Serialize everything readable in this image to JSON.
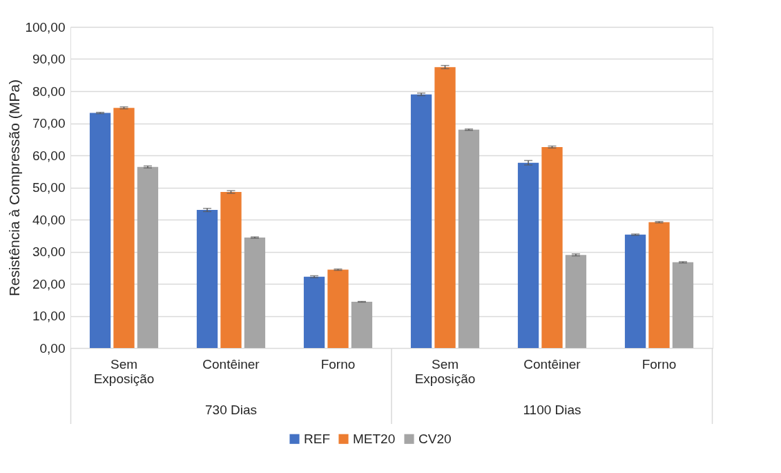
{
  "chart_data": {
    "type": "bar",
    "ylabel": "Resistência à Compressão (MPa)",
    "categories": [
      "Sem Exposição",
      "Contêiner",
      "Forno",
      "Sem Exposição",
      "Contêiner",
      "Forno"
    ],
    "annotations": [
      "730 Dias",
      "1100 Dias"
    ],
    "series": [
      {
        "name": "REF",
        "color": "#4472c4",
        "values": [
          73.2,
          43.0,
          22.2,
          79.0,
          57.7,
          35.3
        ],
        "errors": [
          0.2,
          0.5,
          0.3,
          0.4,
          0.7,
          0.2
        ]
      },
      {
        "name": "MET20",
        "color": "#ed7d31",
        "values": [
          74.8,
          48.6,
          24.4,
          87.5,
          62.6,
          39.2
        ],
        "errors": [
          0.3,
          0.4,
          0.2,
          0.5,
          0.3,
          0.2
        ]
      },
      {
        "name": "CV20",
        "color": "#a5a5a5",
        "values": [
          56.4,
          34.4,
          14.4,
          68.0,
          29.0,
          26.7
        ],
        "errors": [
          0.3,
          0.2,
          0.1,
          0.2,
          0.3,
          0.2
        ]
      }
    ],
    "ylim": [
      0,
      100
    ],
    "yticks": [
      {
        "value": 0,
        "label": "0,00"
      },
      {
        "value": 10,
        "label": "10,00"
      },
      {
        "value": 20,
        "label": "20,00"
      },
      {
        "value": 30,
        "label": "30,00"
      },
      {
        "value": 40,
        "label": "40,00"
      },
      {
        "value": 50,
        "label": "50,00"
      },
      {
        "value": 60,
        "label": "60,00"
      },
      {
        "value": 70,
        "label": "70,00"
      },
      {
        "value": 80,
        "label": "80,00"
      },
      {
        "value": 90,
        "label": "90,00"
      },
      {
        "value": 100,
        "label": "100,00"
      }
    ],
    "grid": "y",
    "legend": "bottom"
  }
}
